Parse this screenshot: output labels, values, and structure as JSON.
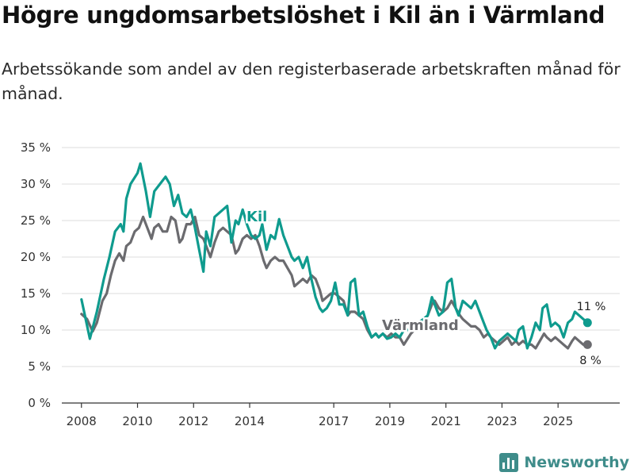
{
  "title": "Högre ungdomsarbetslöshet i Kil än i Värmland",
  "subtitle": "Arbetssökande som andel av den registerbaserade arbetskraften månad för månad.",
  "brand": "Newsworthy",
  "colors": {
    "kil": "#0f9b8e",
    "varmland": "#6b6b6f",
    "grid": "#dddddd",
    "axis": "#333333"
  },
  "chart_data": {
    "type": "line",
    "x_unit": "year",
    "xlim": [
      2007.3,
      2027.2
    ],
    "ylim": [
      0,
      35
    ],
    "y_ticks": [
      0,
      5,
      10,
      15,
      20,
      25,
      30,
      35
    ],
    "y_tick_labels": [
      "0 %",
      "5 %",
      "10 %",
      "15 %",
      "20 %",
      "25 %",
      "30 %",
      "35 %"
    ],
    "x_ticks": [
      2008,
      2010,
      2012,
      2014,
      2017,
      2019,
      2021,
      2023,
      2025
    ],
    "x_tick_labels": [
      "2008",
      "2010",
      "2012",
      "2014",
      "2017",
      "2019",
      "2021",
      "2023",
      "2025"
    ],
    "grid": true,
    "series": [
      {
        "name": "Kil",
        "label": "Kil",
        "end_label": "11 %",
        "x": [
          2008.0,
          2008.3,
          2008.55,
          2008.8,
          2009.0,
          2009.2,
          2009.4,
          2009.5,
          2009.6,
          2009.75,
          2010.0,
          2010.1,
          2010.3,
          2010.45,
          2010.6,
          2010.8,
          2011.0,
          2011.15,
          2011.3,
          2011.45,
          2011.6,
          2011.75,
          2011.9,
          2012.05,
          2012.2,
          2012.35,
          2012.45,
          2012.6,
          2012.75,
          2012.9,
          2013.05,
          2013.2,
          2013.35,
          2013.5,
          2013.6,
          2013.75,
          2013.9,
          2014.05,
          2014.2,
          2014.35,
          2014.45,
          2014.6,
          2014.75,
          2014.9,
          2015.05,
          2015.2,
          2015.35,
          2015.5,
          2015.6,
          2015.75,
          2015.9,
          2016.05,
          2016.2,
          2016.35,
          2016.5,
          2016.6,
          2016.75,
          2016.9,
          2017.05,
          2017.2,
          2017.35,
          2017.5,
          2017.6,
          2017.75,
          2017.9,
          2018.05,
          2018.2,
          2018.35,
          2018.5,
          2018.6,
          2018.75,
          2018.9,
          2019.05,
          2019.2,
          2019.35,
          2019.5,
          2019.75,
          2020.0,
          2020.2,
          2020.35,
          2020.5,
          2020.6,
          2020.75,
          2020.9,
          2021.05,
          2021.2,
          2021.35,
          2021.45,
          2021.6,
          2021.75,
          2021.9,
          2022.05,
          2022.2,
          2022.35,
          2022.45,
          2022.6,
          2022.75,
          2022.9,
          2023.05,
          2023.2,
          2023.35,
          2023.5,
          2023.6,
          2023.75,
          2023.9,
          2024.05,
          2024.2,
          2024.35,
          2024.45,
          2024.6,
          2024.75,
          2024.9,
          2025.05,
          2025.2,
          2025.35,
          2025.5,
          2025.6,
          2025.75,
          2025.9,
          2026.05
        ],
        "values": [
          14.2,
          8.8,
          12.5,
          17.0,
          20.0,
          23.5,
          24.5,
          23.5,
          28.0,
          30.0,
          31.5,
          32.8,
          29.0,
          25.5,
          29.0,
          30.0,
          31.0,
          30.0,
          27.0,
          28.5,
          26.0,
          25.5,
          26.5,
          24.0,
          21.0,
          18.0,
          23.5,
          21.5,
          25.5,
          26.0,
          26.5,
          27.0,
          22.0,
          25.0,
          24.5,
          26.5,
          24.5,
          23.0,
          22.5,
          23.0,
          24.5,
          21.0,
          23.0,
          22.5,
          25.2,
          23.0,
          21.5,
          20.0,
          19.5,
          20.0,
          18.5,
          20.0,
          17.0,
          14.5,
          13.0,
          12.5,
          13.0,
          14.0,
          16.5,
          13.5,
          13.5,
          12.0,
          16.5,
          17.0,
          12.0,
          12.5,
          10.5,
          9.0,
          9.5,
          9.0,
          9.5,
          8.8,
          9.0,
          9.5,
          9.0,
          10.0,
          10.0,
          11.0,
          11.5,
          12.0,
          14.5,
          13.5,
          12.0,
          12.5,
          16.5,
          17.0,
          13.0,
          12.0,
          14.0,
          13.5,
          13.0,
          14.0,
          12.5,
          11.0,
          10.0,
          9.0,
          7.5,
          8.5,
          9.0,
          9.5,
          9.0,
          8.5,
          10.0,
          10.5,
          7.5,
          9.0,
          11.0,
          10.0,
          13.0,
          13.5,
          10.5,
          11.0,
          10.5,
          9.0,
          11.0,
          11.5,
          12.5,
          12.0,
          11.5,
          11.0
        ]
      },
      {
        "name": "Värmland",
        "label": "Värmland",
        "end_label": "8 %",
        "x": [
          2008.0,
          2008.2,
          2008.4,
          2008.55,
          2008.75,
          2008.9,
          2009.05,
          2009.2,
          2009.35,
          2009.5,
          2009.6,
          2009.75,
          2009.9,
          2010.05,
          2010.2,
          2010.35,
          2010.5,
          2010.6,
          2010.75,
          2010.9,
          2011.05,
          2011.2,
          2011.35,
          2011.5,
          2011.6,
          2011.75,
          2011.9,
          2012.05,
          2012.2,
          2012.35,
          2012.5,
          2012.6,
          2012.75,
          2012.9,
          2013.05,
          2013.2,
          2013.35,
          2013.5,
          2013.6,
          2013.75,
          2013.9,
          2014.05,
          2014.2,
          2014.35,
          2014.5,
          2014.6,
          2014.75,
          2014.9,
          2015.05,
          2015.2,
          2015.35,
          2015.5,
          2015.6,
          2015.75,
          2015.9,
          2016.05,
          2016.2,
          2016.35,
          2016.5,
          2016.6,
          2016.75,
          2016.9,
          2017.05,
          2017.2,
          2017.35,
          2017.5,
          2017.6,
          2017.75,
          2017.9,
          2018.05,
          2018.2,
          2018.35,
          2018.5,
          2018.6,
          2018.75,
          2018.9,
          2019.05,
          2019.2,
          2019.35,
          2019.5,
          2019.75,
          2020.0,
          2020.2,
          2020.35,
          2020.5,
          2020.6,
          2020.75,
          2020.9,
          2021.05,
          2021.2,
          2021.35,
          2021.5,
          2021.6,
          2021.75,
          2021.9,
          2022.05,
          2022.2,
          2022.35,
          2022.5,
          2022.6,
          2022.75,
          2022.9,
          2023.05,
          2023.2,
          2023.35,
          2023.5,
          2023.6,
          2023.75,
          2023.9,
          2024.05,
          2024.2,
          2024.35,
          2024.5,
          2024.6,
          2024.75,
          2024.9,
          2025.05,
          2025.2,
          2025.35,
          2025.5,
          2025.6,
          2025.75,
          2025.9,
          2026.05
        ],
        "values": [
          12.2,
          11.5,
          9.8,
          11.0,
          14.0,
          15.0,
          17.5,
          19.5,
          20.5,
          19.5,
          21.5,
          22.0,
          23.5,
          24.0,
          25.5,
          24.0,
          22.5,
          24.0,
          24.5,
          23.5,
          23.5,
          25.5,
          25.0,
          22.0,
          22.5,
          24.5,
          24.5,
          25.5,
          23.0,
          22.5,
          21.0,
          20.0,
          22.0,
          23.5,
          24.0,
          23.5,
          23.0,
          20.5,
          21.0,
          22.5,
          23.0,
          22.5,
          23.0,
          21.5,
          19.5,
          18.5,
          19.5,
          20.0,
          19.5,
          19.5,
          18.5,
          17.5,
          16.0,
          16.5,
          17.0,
          16.5,
          17.5,
          17.0,
          15.5,
          14.0,
          14.5,
          15.0,
          15.0,
          14.5,
          14.0,
          12.0,
          12.5,
          12.5,
          12.0,
          11.5,
          10.0,
          9.0,
          9.5,
          9.0,
          9.5,
          9.0,
          9.5,
          9.0,
          9.0,
          8.0,
          9.5,
          10.5,
          11.0,
          12.0,
          13.5,
          14.0,
          13.0,
          12.5,
          13.0,
          14.0,
          13.0,
          12.0,
          11.5,
          11.0,
          10.5,
          10.5,
          10.0,
          9.0,
          9.5,
          9.0,
          8.5,
          8.0,
          8.5,
          9.0,
          8.0,
          8.5,
          8.0,
          8.5,
          8.0,
          8.0,
          7.5,
          8.5,
          9.5,
          9.0,
          8.5,
          9.0,
          8.5,
          8.0,
          7.5,
          8.5,
          9.0,
          8.5,
          8.0,
          8.0
        ]
      }
    ]
  }
}
